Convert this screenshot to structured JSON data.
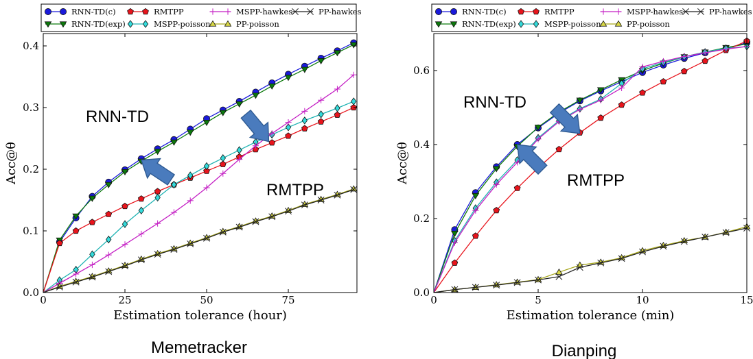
{
  "chart_data": [
    {
      "type": "line",
      "caption": "Memetracker",
      "xlabel": "Estimation tolerance (hour)",
      "ylabel": "Acc@θ",
      "xlim": [
        0,
        96
      ],
      "ylim": [
        0,
        0.42
      ],
      "xticks": [
        0,
        25,
        50,
        75
      ],
      "xtick_labels": [
        "0",
        "25",
        "50",
        "75"
      ],
      "yticks": [
        0,
        0.1,
        0.2,
        0.3,
        0.4
      ],
      "ytick_labels": [
        "0.0",
        "0.1",
        "0.2",
        "0.3",
        "0.4"
      ],
      "annotations": [
        {
          "text": "RNN-TD",
          "target": [
            30,
            0.215
          ]
        },
        {
          "text": "RMTPP",
          "target": [
            69,
            0.245
          ]
        }
      ],
      "x": [
        0,
        5,
        10,
        15,
        20,
        25,
        30,
        35,
        40,
        45,
        50,
        55,
        60,
        65,
        70,
        75,
        80,
        85,
        90,
        95
      ],
      "series": [
        {
          "name": "RNN-TD(c)",
          "values": [
            0,
            0.082,
            0.121,
            0.156,
            0.179,
            0.199,
            0.217,
            0.233,
            0.248,
            0.265,
            0.282,
            0.296,
            0.31,
            0.325,
            0.34,
            0.354,
            0.367,
            0.38,
            0.392,
            0.405
          ]
        },
        {
          "name": "RNN-TD(exp)",
          "values": [
            0,
            0.085,
            0.124,
            0.153,
            0.175,
            0.196,
            0.213,
            0.229,
            0.244,
            0.26,
            0.276,
            0.292,
            0.306,
            0.32,
            0.335,
            0.349,
            0.362,
            0.376,
            0.389,
            0.402
          ]
        },
        {
          "name": "RMTPP",
          "values": [
            0,
            0.08,
            0.1,
            0.114,
            0.127,
            0.14,
            0.152,
            0.164,
            0.175,
            0.186,
            0.197,
            0.208,
            0.22,
            0.232,
            0.243,
            0.254,
            0.266,
            0.277,
            0.288,
            0.3
          ]
        },
        {
          "name": "MSPP-poisson",
          "values": [
            0,
            0.02,
            0.037,
            0.062,
            0.086,
            0.111,
            0.133,
            0.154,
            0.175,
            0.19,
            0.205,
            0.218,
            0.231,
            0.244,
            0.256,
            0.268,
            0.279,
            0.289,
            0.299,
            0.31
          ]
        },
        {
          "name": "MSPP-hawkes",
          "values": [
            0,
            0.015,
            0.03,
            0.045,
            0.061,
            0.078,
            0.095,
            0.112,
            0.13,
            0.149,
            0.17,
            0.193,
            0.216,
            0.238,
            0.258,
            0.276,
            0.294,
            0.312,
            0.33,
            0.353
          ]
        },
        {
          "name": "PP-poisson",
          "values": [
            0,
            0.01,
            0.018,
            0.026,
            0.035,
            0.044,
            0.054,
            0.063,
            0.071,
            0.08,
            0.089,
            0.099,
            0.107,
            0.116,
            0.124,
            0.133,
            0.143,
            0.151,
            0.159,
            0.168
          ]
        },
        {
          "name": "PP-hawkes",
          "values": [
            0,
            0.009,
            0.017,
            0.025,
            0.034,
            0.043,
            0.053,
            0.062,
            0.07,
            0.079,
            0.088,
            0.098,
            0.106,
            0.115,
            0.123,
            0.132,
            0.142,
            0.15,
            0.158,
            0.167
          ]
        }
      ]
    },
    {
      "type": "line",
      "caption": "Dianping",
      "xlabel": "Estimation tolerance (min)",
      "ylabel": "Acc@θ",
      "xlim": [
        0,
        15
      ],
      "ylim": [
        0,
        0.7
      ],
      "xticks": [
        0,
        5,
        10,
        15
      ],
      "xtick_labels": [
        "0",
        "5",
        "10",
        "15"
      ],
      "yticks": [
        0,
        0.2,
        0.4,
        0.6
      ],
      "ytick_labels": [
        "0.0",
        "0.2",
        "0.4",
        "0.6"
      ],
      "annotations": [
        {
          "text": "RNN-TD",
          "target": [
            4,
            0.4
          ]
        },
        {
          "text": "RMTPP",
          "target": [
            7,
            0.43
          ]
        }
      ],
      "x": [
        0,
        1,
        2,
        3,
        4,
        5,
        6,
        7,
        8,
        9,
        10,
        11,
        12,
        13,
        14,
        15
      ],
      "series": [
        {
          "name": "RNN-TD(c)",
          "values": [
            0,
            0.17,
            0.27,
            0.34,
            0.4,
            0.445,
            0.485,
            0.518,
            0.545,
            0.57,
            0.595,
            0.615,
            0.633,
            0.648,
            0.66,
            0.675
          ]
        },
        {
          "name": "RNN-TD(exp)",
          "values": [
            0,
            0.16,
            0.262,
            0.335,
            0.395,
            0.447,
            0.488,
            0.52,
            0.548,
            0.575,
            0.6,
            0.62,
            0.637,
            0.65,
            0.662,
            0.672
          ]
        },
        {
          "name": "RMTPP",
          "values": [
            0,
            0.08,
            0.153,
            0.222,
            0.282,
            0.337,
            0.387,
            0.432,
            0.472,
            0.507,
            0.54,
            0.57,
            0.598,
            0.626,
            0.655,
            0.68
          ]
        },
        {
          "name": "MSPP-poisson",
          "values": [
            0,
            0.14,
            0.228,
            0.298,
            0.358,
            0.418,
            0.465,
            0.497,
            0.523,
            0.565,
            0.605,
            0.622,
            0.637,
            0.65,
            0.66,
            0.665
          ]
        },
        {
          "name": "MSPP-hawkes",
          "values": [
            0,
            0.135,
            0.222,
            0.292,
            0.352,
            0.415,
            0.462,
            0.495,
            0.52,
            0.553,
            0.61,
            0.625,
            0.638,
            0.648,
            0.658,
            0.665
          ]
        },
        {
          "name": "PP-poisson",
          "values": [
            0,
            0.008,
            0.014,
            0.021,
            0.028,
            0.035,
            0.055,
            0.074,
            0.082,
            0.094,
            0.113,
            0.127,
            0.14,
            0.15,
            0.163,
            0.178
          ]
        },
        {
          "name": "PP-hawkes",
          "values": [
            0,
            0.008,
            0.014,
            0.02,
            0.027,
            0.034,
            0.043,
            0.068,
            0.08,
            0.092,
            0.11,
            0.125,
            0.138,
            0.15,
            0.162,
            0.174
          ]
        }
      ]
    }
  ],
  "legend": {
    "entries": [
      "RNN-TD(c)",
      "RMTPP",
      "MSPP-hawkes",
      "PP-hawkes",
      "RNN-TD(exp)",
      "MSPP-poisson",
      "PP-poisson"
    ]
  },
  "styles": {
    "RNN-TD(c)": {
      "color": "#1a1adb",
      "fill": "#1a1adb",
      "marker": "circle"
    },
    "RNN-TD(exp)": {
      "color": "#0c7a0c",
      "fill": "#0c7a0c",
      "marker": "triangle-down"
    },
    "RMTPP": {
      "color": "#e8141c",
      "fill": "#e8141c",
      "marker": "pentagon"
    },
    "MSPP-poisson": {
      "color": "#1fb3b3",
      "fill": "#33dbdb",
      "marker": "diamond"
    },
    "MSPP-hawkes": {
      "color": "#c41fc4",
      "fill": "#c41fc4",
      "marker": "plus"
    },
    "PP-poisson": {
      "color": "#a6a61a",
      "fill": "#d8d845",
      "marker": "triangle-up"
    },
    "PP-hawkes": {
      "color": "#222222",
      "fill": "#222222",
      "marker": "x"
    }
  },
  "arrow_color": "#4a7bbd"
}
